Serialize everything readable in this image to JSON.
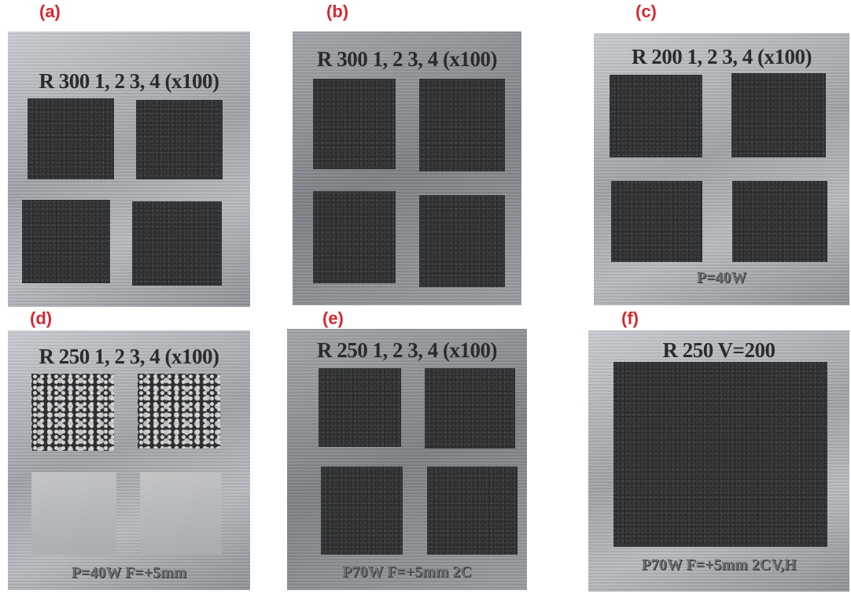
{
  "panels": [
    {
      "label": "(a)",
      "heading": "R 300 1, 2 3, 4 (x100)"
    },
    {
      "label": "(b)",
      "heading": "R 300 1, 2 3, 4 (x100)"
    },
    {
      "label": "(c)",
      "heading": "R 200 1, 2 3, 4 (x100)",
      "footer": "P=40W"
    },
    {
      "label": "(d)",
      "heading": "R 250 1, 2 3, 4 (x100)",
      "footer": "P=40W F=+5mm"
    },
    {
      "label": "(e)",
      "heading": "R 250 1, 2 3, 4 (x100)",
      "footer": "P70W F=+5mm 2C"
    },
    {
      "label": "(f)",
      "heading": "R 250 V=200",
      "footer": "P70W F=+5mm 2CV,H"
    }
  ]
}
